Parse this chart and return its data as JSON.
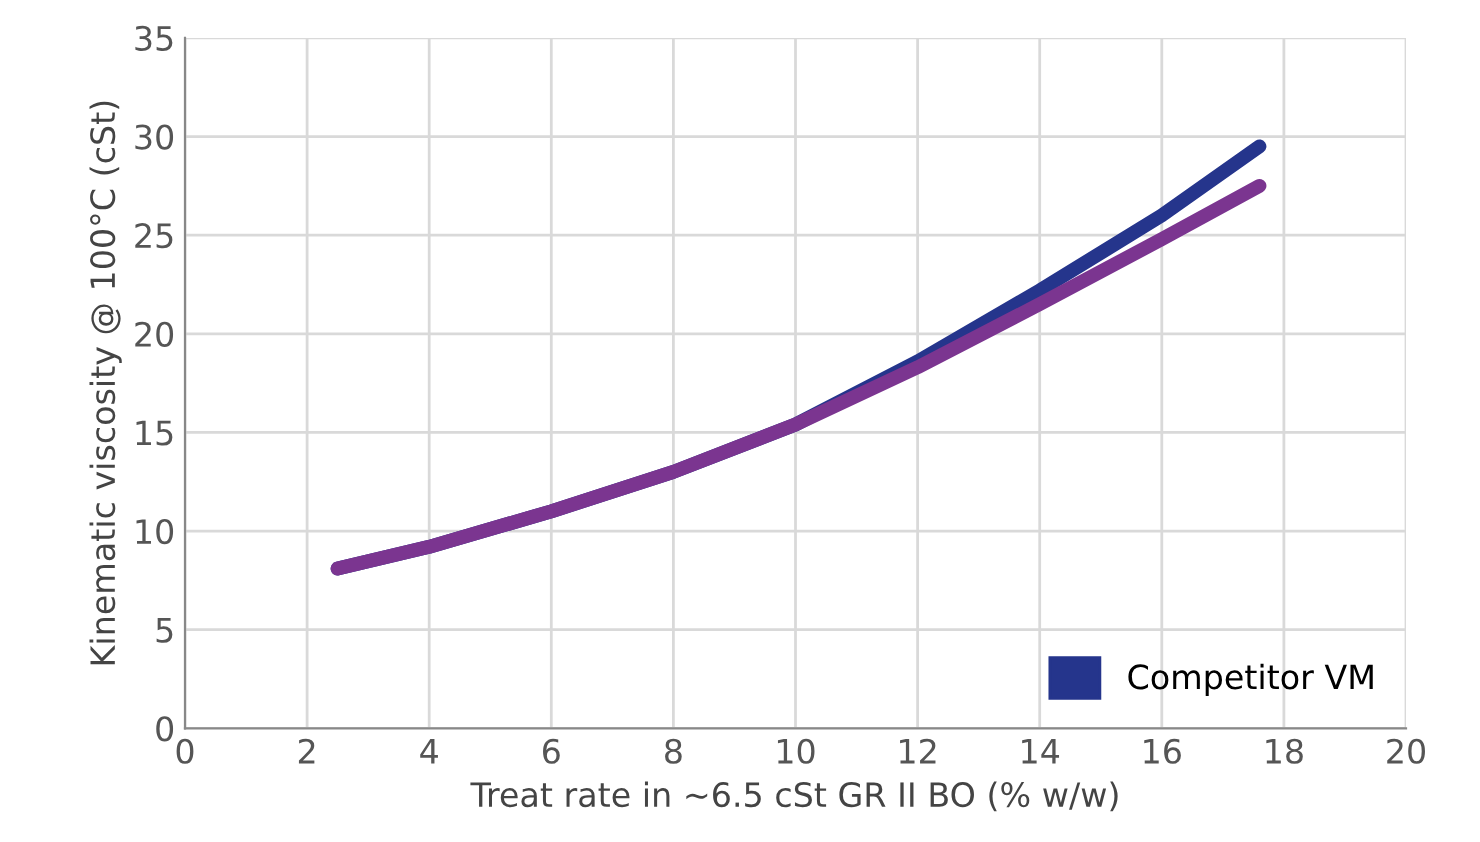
{
  "chart_data": {
    "type": "line",
    "xlabel": "Treat rate in ~6.5 cSt GR II BO (% w/w)",
    "ylabel": "Kinematic viscosity @ 100°C (cSt)",
    "xlim": [
      0,
      20
    ],
    "xticks": [
      0,
      2,
      4,
      6,
      8,
      10,
      12,
      14,
      16,
      18,
      20
    ],
    "ylim": [
      0,
      35
    ],
    "yticks": [
      0,
      5,
      10,
      15,
      20,
      25,
      30,
      35
    ],
    "grid": true,
    "legend": "bottom right",
    "marker": "none",
    "line_style": "solid",
    "series": [
      {
        "color": "#7b3590",
        "x": [
          2.5,
          4,
          6,
          8,
          10,
          12,
          14,
          16,
          17.6
        ],
        "values": [
          8.1,
          9.2,
          11.0,
          13.0,
          15.4,
          18.3,
          21.5,
          24.8,
          27.5
        ]
      },
      {
        "name": "Competitor VM",
        "color": "#25358c",
        "x": [
          2.5,
          4,
          6,
          8,
          10,
          12,
          14,
          16,
          17.6
        ],
        "values": [
          8.1,
          9.2,
          11.0,
          13.0,
          15.4,
          18.6,
          22.2,
          26.0,
          29.5
        ]
      }
    ]
  }
}
